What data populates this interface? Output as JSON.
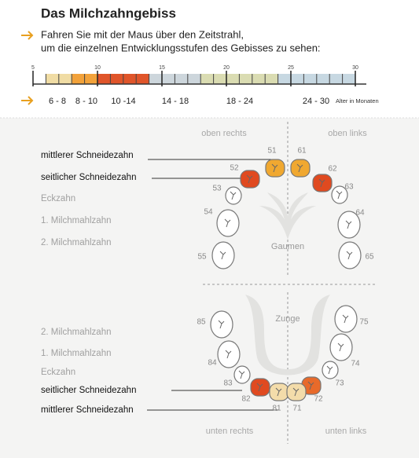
{
  "header": {
    "title": "Das Milchzahngebiss",
    "instruction": [
      "Fahren Sie mit der Maus über den Zeitstrahl,",
      "um die einzelnen Entwicklungsstufen des Gebisses zu sehen:"
    ]
  },
  "timeline": {
    "ticks": [
      5,
      10,
      15,
      20,
      25,
      30
    ],
    "ranges": [
      "6 - 8",
      "8 - 10",
      "10 -14",
      "14 - 18",
      "18 - 24",
      "24 - 30"
    ],
    "unit": "Alter in Monaten"
  },
  "upper": {
    "corners": [
      "oben rechts",
      "oben links"
    ],
    "rows": [
      "mittlerer Schneidezahn",
      "seitlicher Schneidezahn",
      "Eckzahn",
      "1. Milchmahlzahn",
      "2. Milchmahlzahn"
    ],
    "teeth": [
      51,
      61,
      52,
      62,
      53,
      63,
      54,
      64,
      55,
      65
    ],
    "center": "Gaumen"
  },
  "lower": {
    "corners": [
      "unten rechts",
      "unten links"
    ],
    "rows": [
      "2. Milchmahlzahn",
      "1. Milchmahlzahn",
      "Eckzahn",
      "seitlicher Schneidezahn",
      "mittlerer Schneidezahn"
    ],
    "teeth": [
      85,
      75,
      84,
      74,
      83,
      73,
      82,
      72,
      81,
      71
    ],
    "center": "Zunge"
  }
}
